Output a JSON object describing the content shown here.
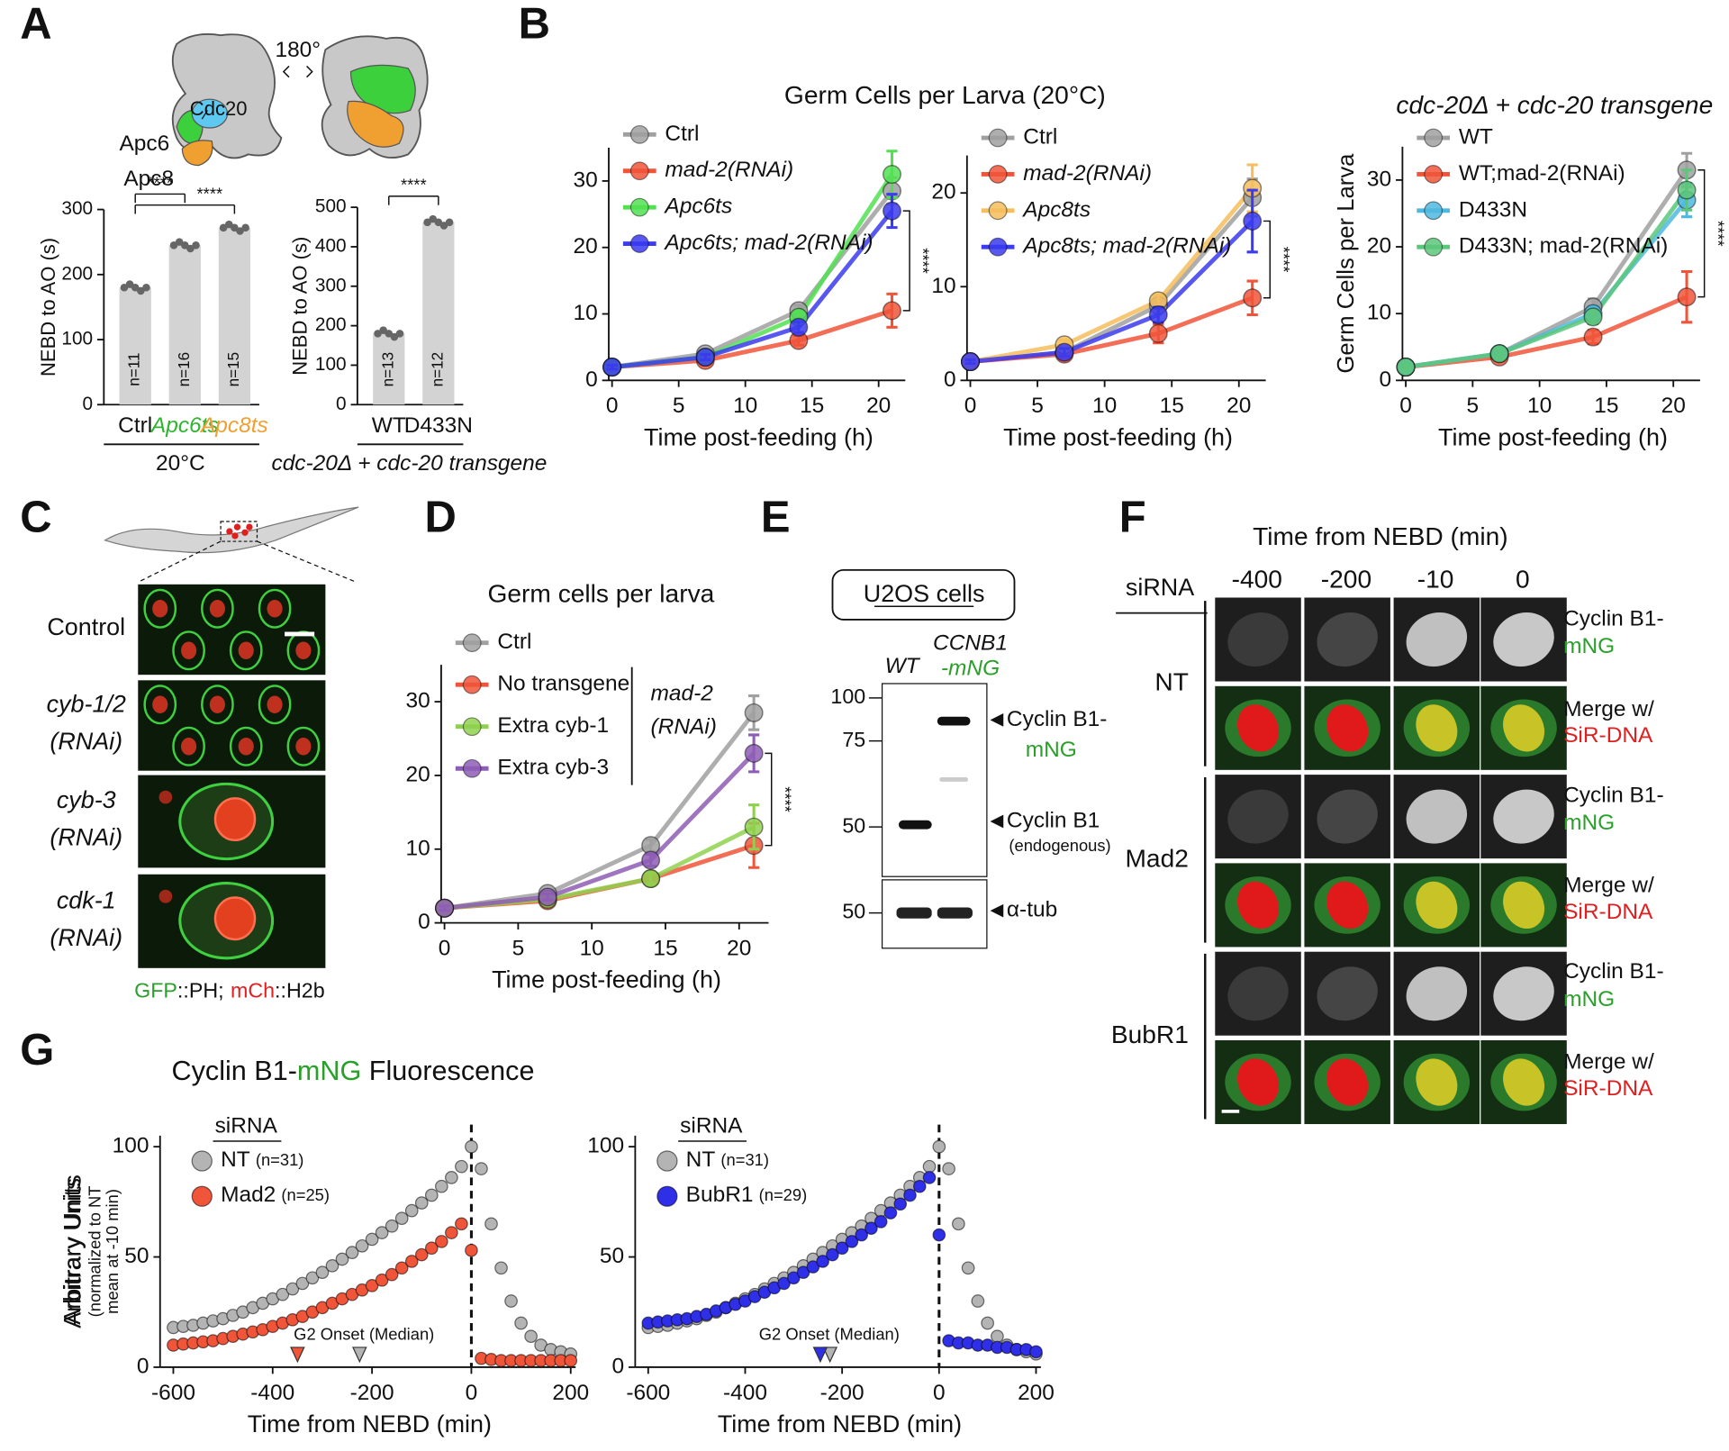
{
  "panel_labels": [
    "A",
    "B",
    "C",
    "D",
    "E",
    "F",
    "G"
  ],
  "panel_a": {
    "subunits": [
      "Cdc20",
      "Apc6",
      "Apc8"
    ],
    "rotation": "180°"
  },
  "panel_c": {
    "conditions": [
      "Control",
      [
        "cyb-1/2",
        "(RNAi)"
      ],
      [
        "cyb-3",
        "(RNAi)"
      ],
      [
        "cdk-1",
        "(RNAi)"
      ]
    ],
    "caption": [
      "GFP",
      "::PH;",
      "mCh",
      "::H2b"
    ]
  },
  "panel_e": {
    "title": "U2OS cells",
    "lane_wt": "WT",
    "lane_tagged": [
      "CCNB1",
      "-mNG"
    ],
    "mw_markers": [
      100,
      75,
      50,
      50
    ],
    "band_tagged": [
      "Cyclin B1-",
      "mNG"
    ],
    "band_endogenous": [
      "Cyclin B1",
      "(endogenous)"
    ],
    "band_tubulin": "α-tub"
  },
  "panel_f": {
    "title": "Time from NEBD (min)",
    "siRNA": "siRNA",
    "times": [
      -400,
      -200,
      -10,
      0
    ],
    "rows": [
      "NT",
      "Mad2",
      "BubR1"
    ],
    "channels": [
      [
        "Cyclin B1-",
        "mNG"
      ],
      [
        "Merge w/",
        "SiR-DNA"
      ]
    ]
  },
  "panel_g_title": [
    "Cyclin B1-",
    "mNG",
    " Fluorescence"
  ],
  "chart_data": [
    {
      "type": "bar",
      "categories": [
        "Ctrl",
        "Apc6ts",
        "Apc8ts"
      ],
      "category_colors": [
        "#111111",
        "#2fb52f",
        "#f0a030"
      ],
      "values": [
        180,
        245,
        272
      ],
      "color": "#d3d3d3",
      "ylim": [
        0,
        300
      ],
      "yticks": [
        0,
        100,
        200,
        300
      ],
      "ylabel": "NEBD to AO (s)",
      "n_labels": [
        "n=11",
        "n=16",
        "n=15"
      ],
      "group_label": "20°C",
      "significance": [
        "****",
        "****"
      ]
    },
    {
      "type": "bar",
      "categories": [
        "WT",
        "D433N"
      ],
      "values": [
        180,
        462
      ],
      "color": "#d3d3d3",
      "ylim": [
        0,
        500
      ],
      "yticks": [
        0,
        100,
        200,
        300,
        400,
        500
      ],
      "ylabel": "NEBD to AO (s)",
      "n_labels": [
        "n=13",
        "n=12"
      ],
      "group_label": "cdc-20Δ + cdc-20 transgene",
      "significance": [
        "****"
      ]
    },
    {
      "type": "line",
      "title": "Germ Cells per Larva (20°C)",
      "x": [
        0,
        7,
        14,
        21
      ],
      "xlim": [
        0,
        22
      ],
      "xticks": [
        0,
        5,
        10,
        15,
        20
      ],
      "ylim": [
        0,
        35
      ],
      "yticks": [
        0,
        10,
        20,
        30
      ],
      "xlabel": "Time post-feeding (h)",
      "significance": "****",
      "series": [
        {
          "name": "Ctrl",
          "color": "#a0a0a0",
          "values": [
            2,
            4,
            10.5,
            28.5
          ],
          "errors": [
            0.3,
            0.4,
            0.8,
            2
          ]
        },
        {
          "name": "mad-2(RNAi)",
          "color": "#f0553a",
          "values": [
            2,
            3,
            6,
            10.5
          ],
          "errors": [
            0.3,
            0.3,
            0.7,
            2.5
          ]
        },
        {
          "name": "Apc6ts",
          "color": "#52e052",
          "values": [
            2,
            3.5,
            9.5,
            31
          ],
          "errors": [
            0.3,
            0.4,
            0.8,
            3.5
          ]
        },
        {
          "name": "Apc6ts; mad-2(RNAi)",
          "color": "#3b3bef",
          "values": [
            2,
            3.5,
            8,
            25.5
          ],
          "errors": [
            0.3,
            0.4,
            0.8,
            2.5
          ]
        }
      ]
    },
    {
      "type": "line",
      "x": [
        0,
        7,
        14,
        21
      ],
      "xlim": [
        0,
        22
      ],
      "xticks": [
        0,
        5,
        10,
        15,
        20
      ],
      "ylim": [
        0,
        24
      ],
      "yticks": [
        0,
        10,
        20
      ],
      "xlabel": "Time post-feeding (h)",
      "significance": "****",
      "series": [
        {
          "name": "Ctrl",
          "color": "#a0a0a0",
          "values": [
            2,
            3,
            8,
            19.5
          ],
          "errors": [
            0.2,
            0.4,
            0.7,
            2
          ]
        },
        {
          "name": "mad-2(RNAi)",
          "color": "#f0553a",
          "values": [
            2,
            2.8,
            5,
            8.8
          ],
          "errors": [
            0.2,
            0.5,
            1,
            1.8
          ]
        },
        {
          "name": "Apc8ts",
          "color": "#f5be5e",
          "values": [
            2,
            3.8,
            8.5,
            20.5
          ],
          "errors": [
            0.2,
            0.5,
            0.6,
            2.5
          ]
        },
        {
          "name": "Apc8ts; mad-2(RNAi)",
          "color": "#3b3bef",
          "values": [
            2,
            3,
            7,
            17
          ],
          "errors": [
            0.2,
            0.4,
            0.8,
            3.3
          ]
        }
      ]
    },
    {
      "type": "line",
      "title": "cdc-20Δ + cdc-20 transgene",
      "x": [
        0,
        7,
        14,
        21
      ],
      "xlim": [
        0,
        22
      ],
      "xticks": [
        0,
        5,
        10,
        15,
        20
      ],
      "ylim": [
        0,
        35
      ],
      "yticks": [
        0,
        10,
        20,
        30
      ],
      "xlabel": "Time post-feeding (h)",
      "ylabel": "Germ Cells per Larva",
      "significance": "****",
      "series": [
        {
          "name": "WT",
          "color": "#a0a0a0",
          "values": [
            2,
            4,
            11,
            31.5
          ],
          "errors": [
            0.3,
            0.5,
            1.2,
            2.5
          ]
        },
        {
          "name": "WT;mad-2(RNAi)",
          "color": "#f0553a",
          "values": [
            2,
            3.5,
            6.5,
            12.5
          ],
          "errors": [
            0.3,
            0.5,
            1,
            3.8
          ]
        },
        {
          "name": "D433N",
          "color": "#4fb8e0",
          "values": [
            2,
            4,
            10,
            27
          ],
          "errors": [
            0.3,
            0.5,
            1,
            2.5
          ]
        },
        {
          "name": "D433N; mad-2(RNAi)",
          "color": "#5cc77a",
          "values": [
            2,
            4,
            9.5,
            28.5
          ],
          "errors": [
            0.3,
            0.7,
            1,
            3
          ]
        }
      ]
    },
    {
      "type": "line",
      "title": "Germ cells per larva",
      "x": [
        0,
        7,
        14,
        21
      ],
      "xlim": [
        0,
        22
      ],
      "xticks": [
        0,
        5,
        10,
        15,
        20
      ],
      "ylim": [
        0,
        35
      ],
      "yticks": [
        0,
        10,
        20,
        30
      ],
      "xlabel": "Time post-feeding (h)",
      "significance": "****",
      "group_label": [
        "mad-2",
        "(RNAi)"
      ],
      "series": [
        {
          "name": "Ctrl",
          "color": "#a0a0a0",
          "values": [
            2,
            4,
            10.5,
            28.5
          ],
          "errors": [
            0.3,
            0.4,
            0.8,
            2.3
          ]
        },
        {
          "name": "No transgene",
          "color": "#f0553a",
          "values": [
            2,
            3,
            6,
            10.5
          ],
          "errors": [
            0.3,
            0.4,
            0.8,
            3
          ]
        },
        {
          "name": "Extra cyb-1",
          "color": "#8fd14f",
          "values": [
            2,
            3.2,
            6,
            13
          ],
          "errors": [
            0.3,
            0.4,
            0.8,
            3
          ]
        },
        {
          "name": "Extra cyb-3",
          "color": "#8e5db5",
          "values": [
            2,
            3.5,
            8.5,
            23
          ],
          "errors": [
            0.3,
            0.4,
            0.8,
            2.5
          ]
        }
      ]
    },
    {
      "type": "scatter",
      "x": [
        -600,
        -580,
        -560,
        -540,
        -520,
        -500,
        -480,
        -460,
        -440,
        -420,
        -400,
        -380,
        -360,
        -340,
        -320,
        -300,
        -280,
        -260,
        -240,
        -220,
        -200,
        -180,
        -160,
        -140,
        -120,
        -100,
        -80,
        -60,
        -40,
        -20,
        0,
        20,
        40,
        60,
        80,
        100,
        120,
        140,
        160,
        180,
        200
      ],
      "xlim": [
        -620,
        210
      ],
      "xticks": [
        -600,
        -400,
        -200,
        0,
        200
      ],
      "ylim": [
        0,
        105
      ],
      "yticks": [
        0,
        50,
        100
      ],
      "xlabel": "Time from NEBD (min)",
      "ylabel": "Arbitrary Units",
      "ylabel_note": [
        "(normalized to NT",
        "mean at -10 min)"
      ],
      "legend_title": "siRNA",
      "annotation": "G2 Onset (Median)",
      "series": [
        {
          "name": "NT",
          "n_label": "(n=31)",
          "color": "#b4b4b4",
          "g2_onset": -225,
          "values": [
            18,
            18.5,
            19,
            20,
            21,
            22,
            23.5,
            25,
            27,
            29,
            31,
            33,
            35.5,
            38,
            40.5,
            43,
            46,
            49,
            52,
            55,
            58,
            61,
            64,
            67.5,
            71,
            74.5,
            78,
            82,
            86,
            91,
            100,
            90,
            65,
            45,
            30,
            20,
            14,
            10,
            8,
            7,
            6
          ]
        },
        {
          "name": "Mad2",
          "n_label": "(n=25)",
          "color": "#f0553a",
          "g2_onset": -350,
          "values": [
            10,
            10.5,
            11,
            11.5,
            12,
            13,
            14,
            15,
            16,
            17,
            18.5,
            20,
            21.5,
            23,
            25,
            27,
            29,
            31,
            33,
            35,
            37,
            39.5,
            42,
            45,
            48,
            51,
            54,
            57,
            61,
            65,
            53,
            4,
            3.5,
            3,
            3,
            3,
            3,
            3,
            3,
            3,
            3
          ]
        }
      ]
    },
    {
      "type": "scatter",
      "x": [
        -600,
        -580,
        -560,
        -540,
        -520,
        -500,
        -480,
        -460,
        -440,
        -420,
        -400,
        -380,
        -360,
        -340,
        -320,
        -300,
        -280,
        -260,
        -240,
        -220,
        -200,
        -180,
        -160,
        -140,
        -120,
        -100,
        -80,
        -60,
        -40,
        -20,
        0,
        20,
        40,
        60,
        80,
        100,
        120,
        140,
        160,
        180,
        200
      ],
      "xlim": [
        -620,
        210
      ],
      "xticks": [
        -600,
        -400,
        -200,
        0,
        200
      ],
      "ylim": [
        0,
        105
      ],
      "yticks": [
        0,
        50,
        100
      ],
      "xlabel": "Time from NEBD (min)",
      "legend_title": "siRNA",
      "annotation": "G2 Onset (Median)",
      "series": [
        {
          "name": "NT",
          "n_label": "(n=31)",
          "color": "#b4b4b4",
          "g2_onset": -225,
          "values": [
            18,
            18.5,
            19,
            20,
            21,
            22,
            23.5,
            25,
            27,
            29,
            31,
            33,
            35.5,
            38,
            40.5,
            43,
            46,
            49,
            52,
            55,
            58,
            61,
            64,
            67.5,
            71,
            74.5,
            78,
            82,
            86,
            91,
            100,
            90,
            65,
            45,
            30,
            20,
            14,
            10,
            8,
            7,
            6
          ]
        },
        {
          "name": "BubR1",
          "n_label": "(n=29)",
          "color": "#2f2fe8",
          "g2_onset": -245,
          "values": [
            20,
            20.5,
            21,
            21.5,
            22,
            23,
            24,
            25.5,
            27,
            28.5,
            30,
            32,
            34,
            36,
            38,
            40.5,
            43,
            45.5,
            48,
            51,
            54,
            57,
            60,
            63,
            66,
            70,
            74,
            78,
            82,
            86,
            60,
            12,
            11,
            11,
            10,
            10,
            9,
            9,
            8,
            8,
            7
          ]
        }
      ]
    }
  ]
}
